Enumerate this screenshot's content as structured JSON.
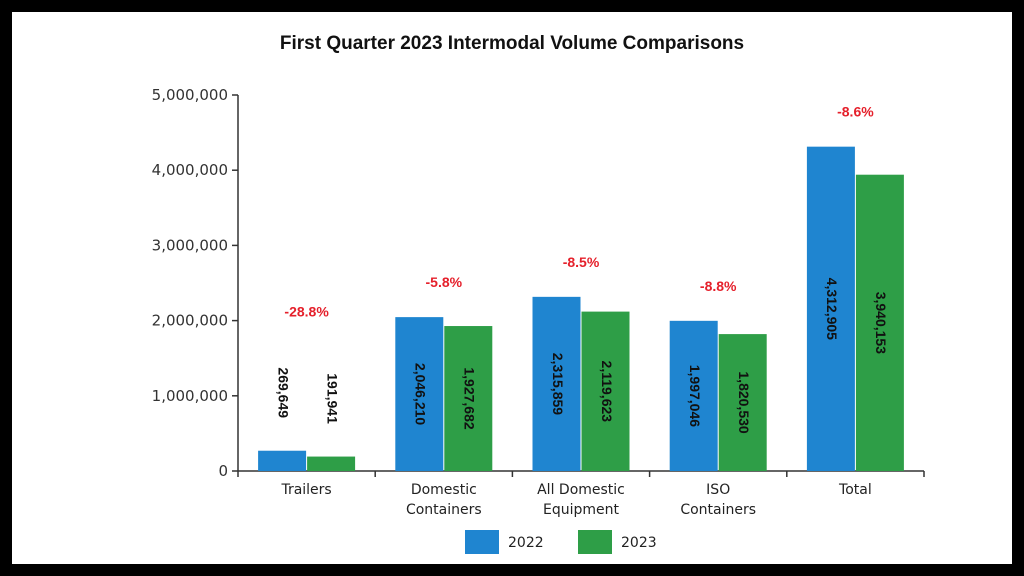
{
  "colors": {
    "series_2022": "#1f85d0",
    "series_2023": "#2e9e47",
    "change": "#e5202b",
    "axis": "#333333"
  },
  "chart_data": {
    "type": "bar",
    "title": "First Quarter 2023 Intermodal Volume Comparisons",
    "categories": [
      [
        "Trailers"
      ],
      [
        "Domestic",
        "Containers"
      ],
      [
        "All Domestic",
        "Equipment"
      ],
      [
        "ISO",
        "Containers"
      ],
      [
        "Total"
      ]
    ],
    "series": [
      {
        "name": "2022",
        "values": [
          269649,
          2046210,
          2315859,
          1997046,
          4312905
        ],
        "labels": [
          "269,649",
          "2,046,210",
          "2,315,859",
          "1,997,046",
          "4,312,905"
        ]
      },
      {
        "name": "2023",
        "values": [
          191941,
          1927682,
          2119623,
          1820530,
          3940153
        ],
        "labels": [
          "191,941",
          "1,927,682",
          "2,119,623",
          "1,820,530",
          "3,940,153"
        ]
      }
    ],
    "changes": [
      "-28.8%",
      "-5.8%",
      "-8.5%",
      "-8.8%",
      "-8.6%"
    ],
    "ylim": [
      0,
      5000000
    ],
    "yticks": [
      0,
      1000000,
      2000000,
      3000000,
      4000000,
      5000000
    ],
    "ytick_labels": [
      "0",
      "1,000,000",
      "2,000,000",
      "3,000,000",
      "4,000,000",
      "5,000,000"
    ],
    "xlabel": "",
    "ylabel": "",
    "legend": [
      "2022",
      "2023"
    ],
    "legend_position": "bottom-center"
  }
}
